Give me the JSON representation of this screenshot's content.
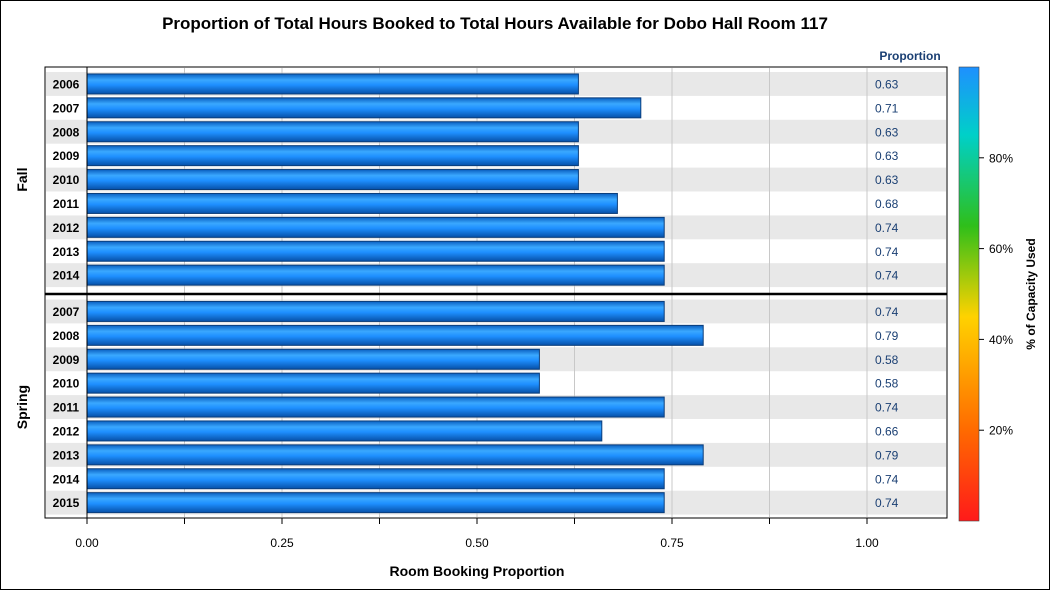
{
  "chart_data": {
    "type": "bar",
    "orientation": "horizontal",
    "title": "Proportion of Total Hours Booked to Total Hours Available for Dobo Hall Room 117",
    "xlabel": "Room Booking Proportion",
    "ylabel": "",
    "xlim": [
      0,
      1.1
    ],
    "x_ticks": [
      "0.00",
      "0.25",
      "0.50",
      "0.75",
      "1.00"
    ],
    "value_column_header": "Proportion",
    "grid": true,
    "groups": [
      {
        "name": "Fall",
        "categories": [
          "2006",
          "2007",
          "2008",
          "2009",
          "2010",
          "2011",
          "2012",
          "2013",
          "2014"
        ],
        "values": [
          0.63,
          0.71,
          0.63,
          0.63,
          0.63,
          0.68,
          0.74,
          0.74,
          0.74
        ],
        "labels": [
          "0.63",
          "0.71",
          "0.63",
          "0.63",
          "0.63",
          "0.68",
          "0.74",
          "0.74",
          "0.74"
        ]
      },
      {
        "name": "Spring",
        "categories": [
          "2007",
          "2008",
          "2009",
          "2010",
          "2011",
          "2012",
          "2013",
          "2014",
          "2015"
        ],
        "values": [
          0.74,
          0.79,
          0.58,
          0.58,
          0.74,
          0.66,
          0.79,
          0.74,
          0.74
        ],
        "labels": [
          "0.74",
          "0.79",
          "0.58",
          "0.58",
          "0.74",
          "0.66",
          "0.79",
          "0.74",
          "0.74"
        ]
      }
    ],
    "colorbar": {
      "label": "% of Capacity Used",
      "tick_labels": [
        "20%",
        "40%",
        "60%",
        "80%"
      ],
      "tick_values": [
        0.2,
        0.4,
        0.6,
        0.8
      ],
      "range": [
        0,
        1
      ],
      "colors": [
        "#ff1a1a",
        "#ff7a00",
        "#ffd200",
        "#2fbf1a",
        "#00d0c8",
        "#1e90ff"
      ]
    },
    "bar_color": "#1e8fff",
    "bar_edge_color": "#0a3d7a",
    "band_color": "#e8e8e8",
    "value_label_color": "#1a3f73",
    "legend_placement": "right"
  }
}
